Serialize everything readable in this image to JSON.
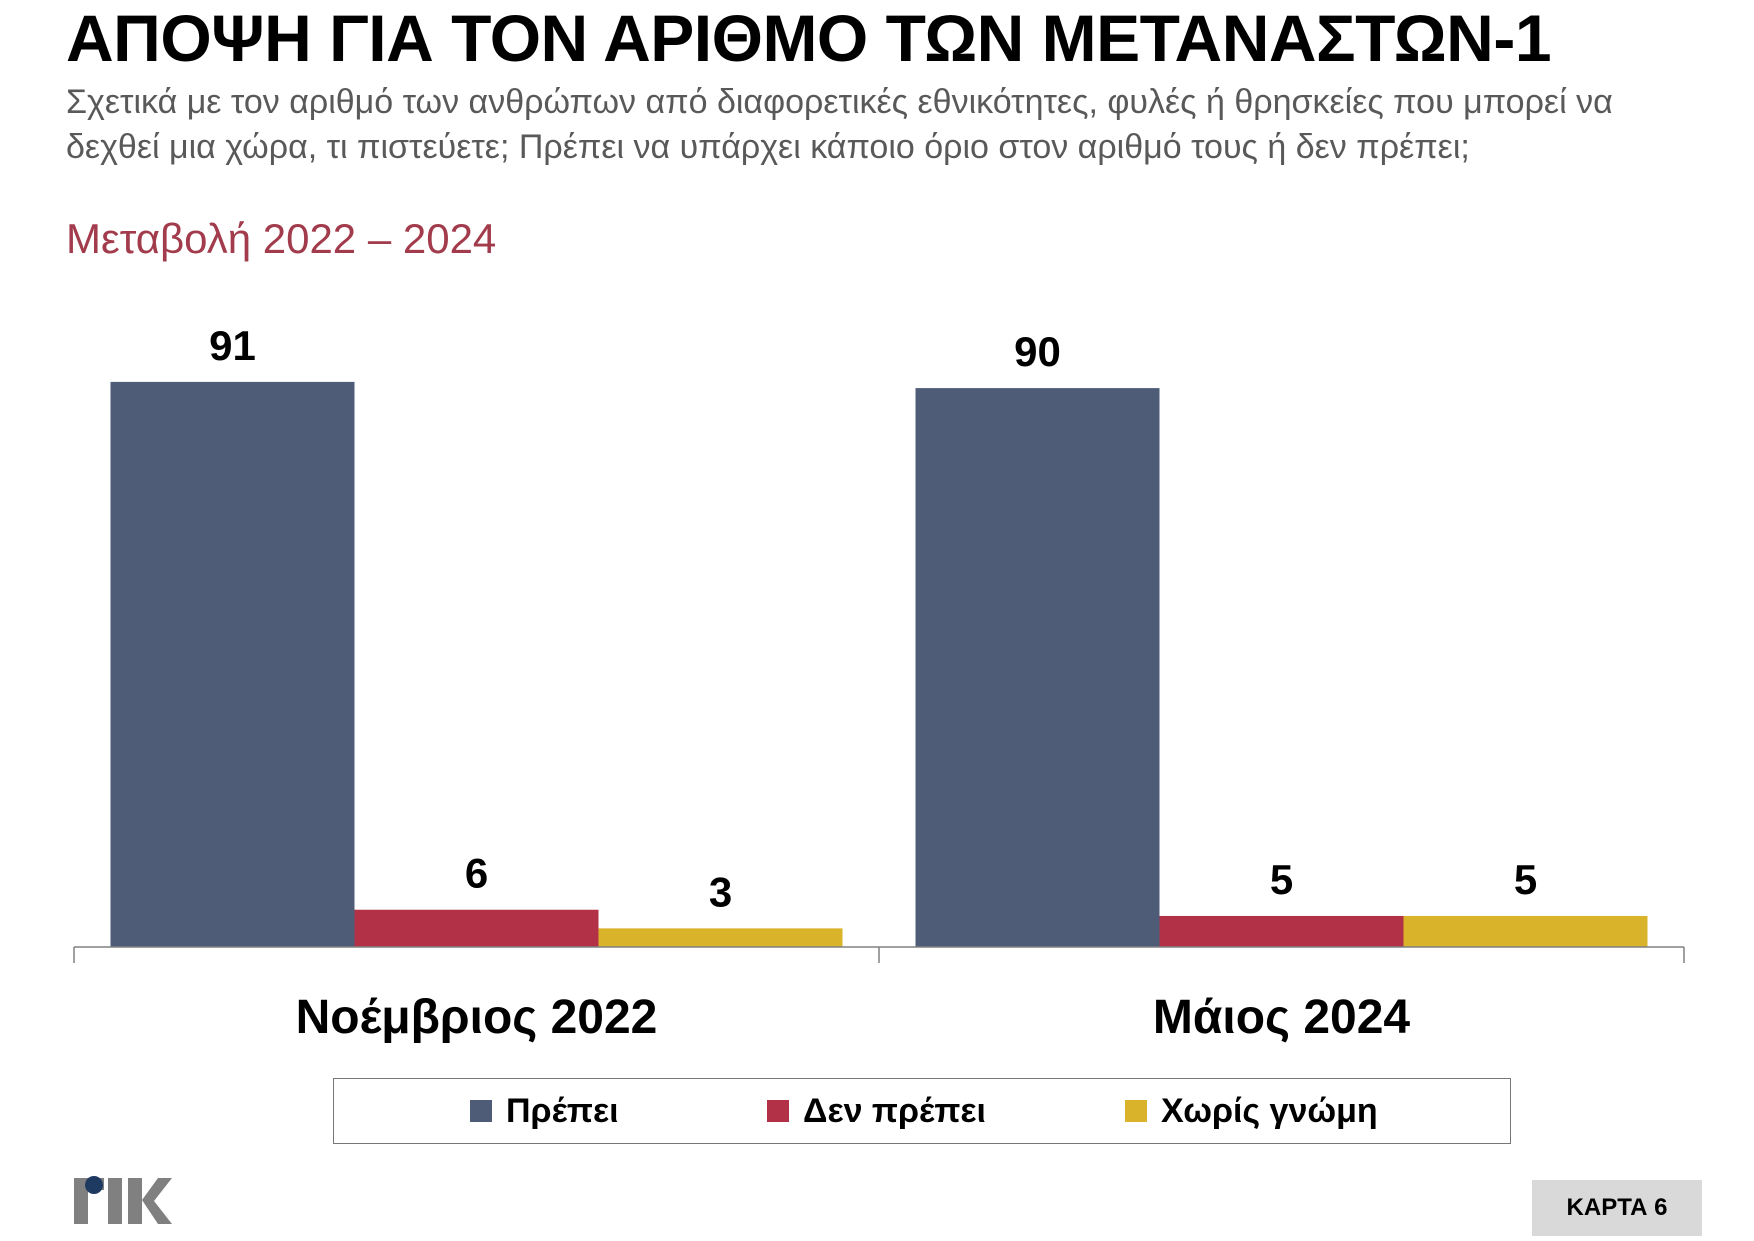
{
  "header": {
    "title": "ΑΠΟΨΗ ΓΙΑ ΤΟΝ ΑΡΙΘΜΟ ΤΩΝ ΜΕΤΑΝΑΣΤΩΝ-1",
    "question": "Σχετικά με τον αριθμό των ανθρώπων από διαφορετικές εθνικότητες, φυλές ή θρησκείες που μπορεί να δεχθεί μια χώρα, τι πιστεύετε; Πρέπει να υπάρχει κάποιο όριο στον αριθμό τους ή δεν πρέπει;",
    "subtitle": "Μεταβολή 2022 – 2024"
  },
  "chart_data": {
    "type": "bar",
    "categories": [
      "Νοέμβριος 2022",
      "Μάιος 2024"
    ],
    "series": [
      {
        "name": "Πρέπει",
        "values": [
          91,
          90
        ],
        "color": "#4E5C78"
      },
      {
        "name": "Δεν πρέπει",
        "values": [
          6,
          5
        ],
        "color": "#B23146"
      },
      {
        "name": "Χωρίς γνώμη",
        "values": [
          3,
          5
        ],
        "color": "#D9B32A"
      }
    ],
    "ylim": [
      0,
      100
    ],
    "grid": false,
    "legend_position": "bottom",
    "data_labels": true
  },
  "footer": {
    "logo_text": "ΡΙΚ",
    "card_label": "ΚΑΡΤΑ 6"
  }
}
